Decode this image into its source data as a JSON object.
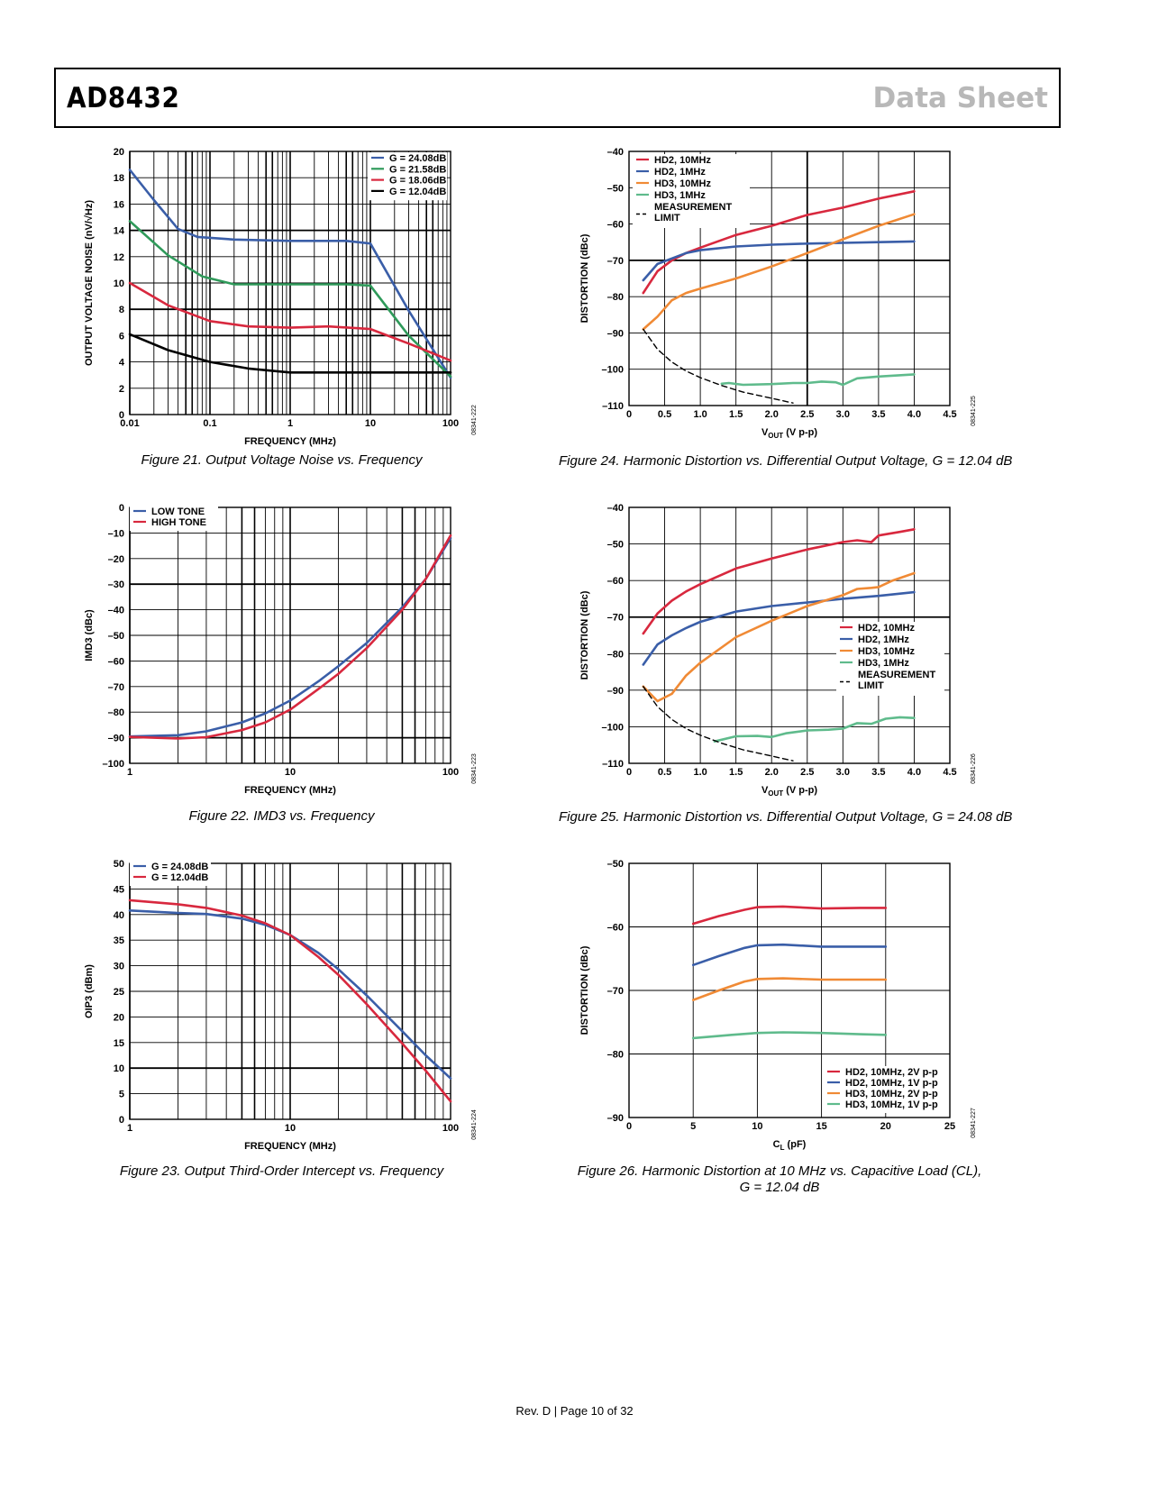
{
  "header": {
    "part": "AD8432",
    "doc_type": "Data Sheet"
  },
  "footer": {
    "text": "Rev. D | Page 10 of 32"
  },
  "chart_data": [
    {
      "id": "fig21",
      "type": "line",
      "caption": "Figure 21. Output Voltage Noise vs. Frequency",
      "code": "08341-222",
      "xscale": "log",
      "xlim": [
        0.01,
        100
      ],
      "ylim": [
        0,
        20
      ],
      "xticks": [
        0.01,
        0.1,
        1,
        10,
        100
      ],
      "xtick_labels": [
        "0.01",
        "0.1",
        "1",
        "10",
        "100"
      ],
      "yticks": [
        0,
        2,
        4,
        6,
        8,
        10,
        12,
        14,
        16,
        18,
        20
      ],
      "heavy_grid_y": [
        6,
        8,
        14
      ],
      "xlabel": "FREQUENCY (MHz)",
      "ylabel": "OUTPUT VOLTAGE NOISE (nV/√Hz)",
      "legend_position": "top-right",
      "series": [
        {
          "name": "G = 24.08dB",
          "color": "#3a5ea8",
          "x": [
            0.01,
            0.02,
            0.04,
            0.07,
            0.2,
            1,
            5,
            10,
            30,
            100
          ],
          "y": [
            18.6,
            16.3,
            14.1,
            13.5,
            13.3,
            13.2,
            13.2,
            13.0,
            7.9,
            2.8
          ]
        },
        {
          "name": "G = 21.58dB",
          "color": "#2f9a5a",
          "x": [
            0.01,
            0.03,
            0.08,
            0.2,
            1,
            5,
            10,
            30,
            100
          ],
          "y": [
            14.7,
            12.1,
            10.5,
            9.9,
            9.9,
            9.9,
            9.8,
            6.0,
            2.9
          ]
        },
        {
          "name": "G = 18.06dB",
          "color": "#d8283e",
          "x": [
            0.01,
            0.03,
            0.1,
            0.3,
            1,
            3,
            10,
            30,
            100
          ],
          "y": [
            10.0,
            8.3,
            7.1,
            6.7,
            6.6,
            6.7,
            6.5,
            5.4,
            4.1
          ]
        },
        {
          "name": "G = 12.04dB",
          "color": "#000000",
          "x": [
            0.01,
            0.03,
            0.1,
            0.3,
            1,
            3,
            10,
            100
          ],
          "y": [
            6.1,
            4.9,
            4.0,
            3.5,
            3.2,
            3.2,
            3.2,
            3.2
          ]
        }
      ]
    },
    {
      "id": "fig22",
      "type": "line",
      "caption": "Figure 22. IMD3 vs. Frequency",
      "code": "08341-223",
      "xscale": "log",
      "xlim": [
        1,
        100
      ],
      "ylim": [
        -100,
        0
      ],
      "xticks": [
        1,
        10,
        100
      ],
      "xtick_labels": [
        "1",
        "10",
        "100"
      ],
      "yticks": [
        -100,
        -90,
        -80,
        -70,
        -60,
        -50,
        -40,
        -30,
        -20,
        -10,
        0
      ],
      "ytick_labels": [
        "–100",
        "–90",
        "–80",
        "–70",
        "–60",
        "–50",
        "–40",
        "–30",
        "–20",
        "–10",
        "0"
      ],
      "heavy_grid_y": [
        -30,
        -90
      ],
      "xlabel": "FREQUENCY (MHz)",
      "ylabel": "IMD3 (dBc)",
      "legend_position": "top-left",
      "series": [
        {
          "name": "LOW TONE",
          "color": "#3a5ea8",
          "x": [
            1,
            2,
            3,
            5,
            7,
            10,
            15,
            20,
            30,
            50,
            70,
            100
          ],
          "y": [
            -89.5,
            -89,
            -87.5,
            -84,
            -80.5,
            -75.5,
            -68,
            -62,
            -53,
            -39,
            -28,
            -12
          ]
        },
        {
          "name": "HIGH TONE",
          "color": "#d8283e",
          "x": [
            1,
            2,
            3,
            5,
            7,
            10,
            15,
            20,
            30,
            50,
            70,
            100
          ],
          "y": [
            -89.7,
            -90.3,
            -89.8,
            -87,
            -84,
            -79,
            -71,
            -65,
            -55,
            -40,
            -28,
            -11
          ]
        }
      ]
    },
    {
      "id": "fig23",
      "type": "line",
      "caption": "Figure 23. Output Third-Order Intercept vs. Frequency",
      "code": "08341-224",
      "xscale": "log",
      "xlim": [
        1,
        100
      ],
      "ylim": [
        0,
        50
      ],
      "xticks": [
        1,
        10,
        100
      ],
      "xtick_labels": [
        "1",
        "10",
        "100"
      ],
      "yticks": [
        0,
        5,
        10,
        15,
        20,
        25,
        30,
        35,
        40,
        45,
        50
      ],
      "heavy_grid_y": [
        10
      ],
      "xlabel": "FREQUENCY (MHz)",
      "ylabel": "OIP3 (dBm)",
      "legend_position": "top-left",
      "series": [
        {
          "name": "G = 24.08dB",
          "color": "#3a5ea8",
          "x": [
            1,
            2,
            3,
            5,
            7,
            10,
            15,
            20,
            30,
            50,
            70,
            100
          ],
          "y": [
            40.8,
            40.3,
            40.1,
            39.2,
            38.0,
            36.0,
            32.5,
            29.3,
            24.2,
            17.2,
            12.5,
            8.0
          ]
        },
        {
          "name": "G = 12.04dB",
          "color": "#d8283e",
          "x": [
            1,
            2,
            3,
            5,
            7,
            10,
            15,
            20,
            30,
            50,
            70,
            100
          ],
          "y": [
            42.8,
            42.0,
            41.3,
            39.8,
            38.3,
            36.0,
            31.7,
            28.2,
            22.5,
            14.8,
            9.5,
            3.5
          ]
        }
      ]
    },
    {
      "id": "fig24",
      "type": "line",
      "caption": "Figure 24. Harmonic Distortion vs. Differential Output Voltage, G = 12.04 dB",
      "code": "08341-225",
      "xscale": "linear",
      "xlim": [
        0,
        4.5
      ],
      "ylim": [
        -110,
        -40
      ],
      "xticks": [
        0,
        0.5,
        1.0,
        1.5,
        2.0,
        2.5,
        3.0,
        3.5,
        4.0,
        4.5
      ],
      "xtick_labels": [
        "0",
        "0.5",
        "1.0",
        "1.5",
        "2.0",
        "2.5",
        "3.0",
        "3.5",
        "4.0",
        "4.5"
      ],
      "yticks": [
        -110,
        -100,
        -90,
        -80,
        -70,
        -60,
        -50,
        -40
      ],
      "ytick_labels": [
        "–110",
        "–100",
        "–90",
        "–80",
        "–70",
        "–60",
        "–50",
        "–40"
      ],
      "heavy_grid_y": [
        -70
      ],
      "heavy_grid_x": [
        2.5
      ],
      "xlabel": "VOUT (V p-p)",
      "ylabel": "DISTORTION (dBc)",
      "legend_position": "top-left",
      "series": [
        {
          "name": "HD2, 10MHz",
          "color": "#d8283e",
          "x": [
            0.2,
            0.4,
            0.6,
            0.8,
            1.0,
            1.5,
            2.0,
            2.5,
            3.0,
            3.5,
            4.0
          ],
          "y": [
            -79,
            -73,
            -70,
            -68,
            -66.5,
            -63,
            -60.5,
            -57.5,
            -55.5,
            -53,
            -51
          ]
        },
        {
          "name": "HD2, 1MHz",
          "color": "#3a5ea8",
          "x": [
            0.2,
            0.4,
            0.6,
            0.8,
            1.0,
            1.5,
            2.0,
            2.5,
            3.0,
            3.5,
            4.0
          ],
          "y": [
            -75.5,
            -71,
            -69.5,
            -68,
            -67.2,
            -66.2,
            -65.7,
            -65.4,
            -65.2,
            -65,
            -64.8
          ]
        },
        {
          "name": "HD3, 10MHz",
          "color": "#f08a35",
          "x": [
            0.2,
            0.4,
            0.6,
            0.8,
            1.0,
            1.5,
            2.0,
            2.5,
            3.0,
            3.5,
            4.0
          ],
          "y": [
            -89,
            -85.5,
            -81,
            -79,
            -77.8,
            -75,
            -71.7,
            -68,
            -64.2,
            -60.5,
            -57.3
          ]
        },
        {
          "name": "HD3, 1MHz",
          "color": "#5fbb8c",
          "x": [
            1.3,
            1.4,
            1.6,
            2.0,
            2.3,
            2.5,
            2.7,
            2.9,
            3.0,
            3.2,
            3.5,
            4.0
          ],
          "y": [
            -104,
            -103.8,
            -104.3,
            -104.1,
            -103.8,
            -103.8,
            -103.4,
            -103.6,
            -104.3,
            -102.5,
            -102,
            -101.4
          ]
        },
        {
          "name": "MEASUREMENT LIMIT",
          "color": "#000000",
          "dashed": true,
          "x": [
            0.2,
            0.4,
            0.6,
            0.8,
            1.0,
            1.3,
            1.6,
            2.0,
            2.3
          ],
          "y": [
            -89,
            -94.5,
            -98,
            -100.5,
            -102.3,
            -104.5,
            -106.3,
            -108,
            -109.3
          ]
        }
      ]
    },
    {
      "id": "fig25",
      "type": "line",
      "caption": "Figure 25. Harmonic Distortion vs. Differential Output Voltage, G = 24.08 dB",
      "code": "08341-226",
      "xscale": "linear",
      "xlim": [
        0,
        4.5
      ],
      "ylim": [
        -110,
        -40
      ],
      "xticks": [
        0,
        0.5,
        1.0,
        1.5,
        2.0,
        2.5,
        3.0,
        3.5,
        4.0,
        4.5
      ],
      "xtick_labels": [
        "0",
        "0.5",
        "1.0",
        "1.5",
        "2.0",
        "2.5",
        "3.0",
        "3.5",
        "4.0",
        "4.5"
      ],
      "yticks": [
        -110,
        -100,
        -90,
        -80,
        -70,
        -60,
        -50,
        -40
      ],
      "ytick_labels": [
        "–110",
        "–100",
        "–90",
        "–80",
        "–70",
        "–60",
        "–50",
        "–40"
      ],
      "heavy_grid_y": [
        -70
      ],
      "heavy_grid_x": [],
      "xlabel": "VOUT (V p-p)",
      "ylabel": "DISTORTION (dBc)",
      "legend_position": "middle-right",
      "series": [
        {
          "name": "HD2, 10MHz",
          "color": "#d8283e",
          "x": [
            0.2,
            0.4,
            0.6,
            0.8,
            1.0,
            1.5,
            2.0,
            2.5,
            3.0,
            3.2,
            3.4,
            3.5,
            3.8,
            4.0
          ],
          "y": [
            -74.5,
            -69,
            -65.5,
            -63,
            -61,
            -56.7,
            -54,
            -51.5,
            -49.5,
            -49,
            -49.5,
            -47.7,
            -46.7,
            -46
          ]
        },
        {
          "name": "HD2, 1MHz",
          "color": "#3a5ea8",
          "x": [
            0.2,
            0.4,
            0.6,
            0.8,
            1.0,
            1.5,
            2.0,
            2.5,
            3.0,
            3.5,
            4.0
          ],
          "y": [
            -83,
            -77.5,
            -75,
            -73,
            -71.3,
            -68.5,
            -67,
            -66,
            -65,
            -64.2,
            -63.2
          ]
        },
        {
          "name": "HD3, 10MHz",
          "color": "#f08a35",
          "x": [
            0.2,
            0.4,
            0.6,
            0.8,
            1.0,
            1.5,
            2.0,
            2.5,
            3.0,
            3.2,
            3.4,
            3.5,
            3.7,
            4.0
          ],
          "y": [
            -89,
            -93,
            -91,
            -86,
            -82.5,
            -75.5,
            -71,
            -67,
            -64,
            -62.3,
            -62,
            -61.8,
            -60,
            -58
          ]
        },
        {
          "name": "HD3, 1MHz",
          "color": "#5fbb8c",
          "x": [
            1.2,
            1.5,
            1.8,
            2.0,
            2.2,
            2.5,
            2.8,
            3.0,
            3.2,
            3.4,
            3.6,
            3.8,
            4.0
          ],
          "y": [
            -104,
            -102.6,
            -102.5,
            -102.8,
            -101.8,
            -101,
            -100.8,
            -100.5,
            -99,
            -99.2,
            -97.8,
            -97.4,
            -97.6
          ]
        },
        {
          "name": "MEASUREMENT LIMIT",
          "color": "#000000",
          "dashed": true,
          "x": [
            0.2,
            0.4,
            0.6,
            0.8,
            1.0,
            1.3,
            1.6,
            2.0,
            2.3
          ],
          "y": [
            -89,
            -94.5,
            -98,
            -100.5,
            -102.3,
            -104.5,
            -106.3,
            -108,
            -109.3
          ]
        }
      ]
    },
    {
      "id": "fig26",
      "type": "line",
      "caption": "Figure 26. Harmonic Distortion at 10 MHz vs. Capacitive Load (CL), G = 12.04 dB",
      "code": "08341-227",
      "xscale": "linear",
      "xlim": [
        0,
        25
      ],
      "ylim": [
        -90,
        -50
      ],
      "xticks": [
        0,
        5,
        10,
        15,
        20,
        25
      ],
      "xtick_labels": [
        "0",
        "5",
        "10",
        "15",
        "20",
        "25"
      ],
      "yticks": [
        -90,
        -80,
        -70,
        -60,
        -50
      ],
      "ytick_labels": [
        "–90",
        "–80",
        "–70",
        "–60",
        "–50"
      ],
      "xlabel": "CL (pF)",
      "ylabel": "DISTORTION (dBc)",
      "legend_position": "bottom-right",
      "series": [
        {
          "name": "HD2, 10MHz, 2V p-p",
          "color": "#d8283e",
          "x": [
            5,
            7,
            9,
            10,
            12,
            15,
            18,
            20
          ],
          "y": [
            -59.5,
            -58.3,
            -57.3,
            -56.9,
            -56.8,
            -57.1,
            -57.0,
            -57.0
          ]
        },
        {
          "name": "HD2, 10MHz, 1V p-p",
          "color": "#3a5ea8",
          "x": [
            5,
            7,
            9,
            10,
            12,
            15,
            18,
            20
          ],
          "y": [
            -66.0,
            -64.6,
            -63.3,
            -62.9,
            -62.8,
            -63.1,
            -63.1,
            -63.1
          ]
        },
        {
          "name": "HD3, 10MHz, 2V p-p",
          "color": "#f08a35",
          "x": [
            5,
            7,
            9,
            10,
            12,
            15,
            18,
            20
          ],
          "y": [
            -71.5,
            -70.0,
            -68.6,
            -68.2,
            -68.1,
            -68.3,
            -68.3,
            -68.3
          ]
        },
        {
          "name": "HD3, 10MHz, 1V p-p",
          "color": "#5fbb8c",
          "x": [
            5,
            8,
            10,
            12,
            15,
            18,
            20
          ],
          "y": [
            -77.5,
            -77.0,
            -76.7,
            -76.6,
            -76.7,
            -76.9,
            -77.0
          ]
        }
      ]
    }
  ]
}
